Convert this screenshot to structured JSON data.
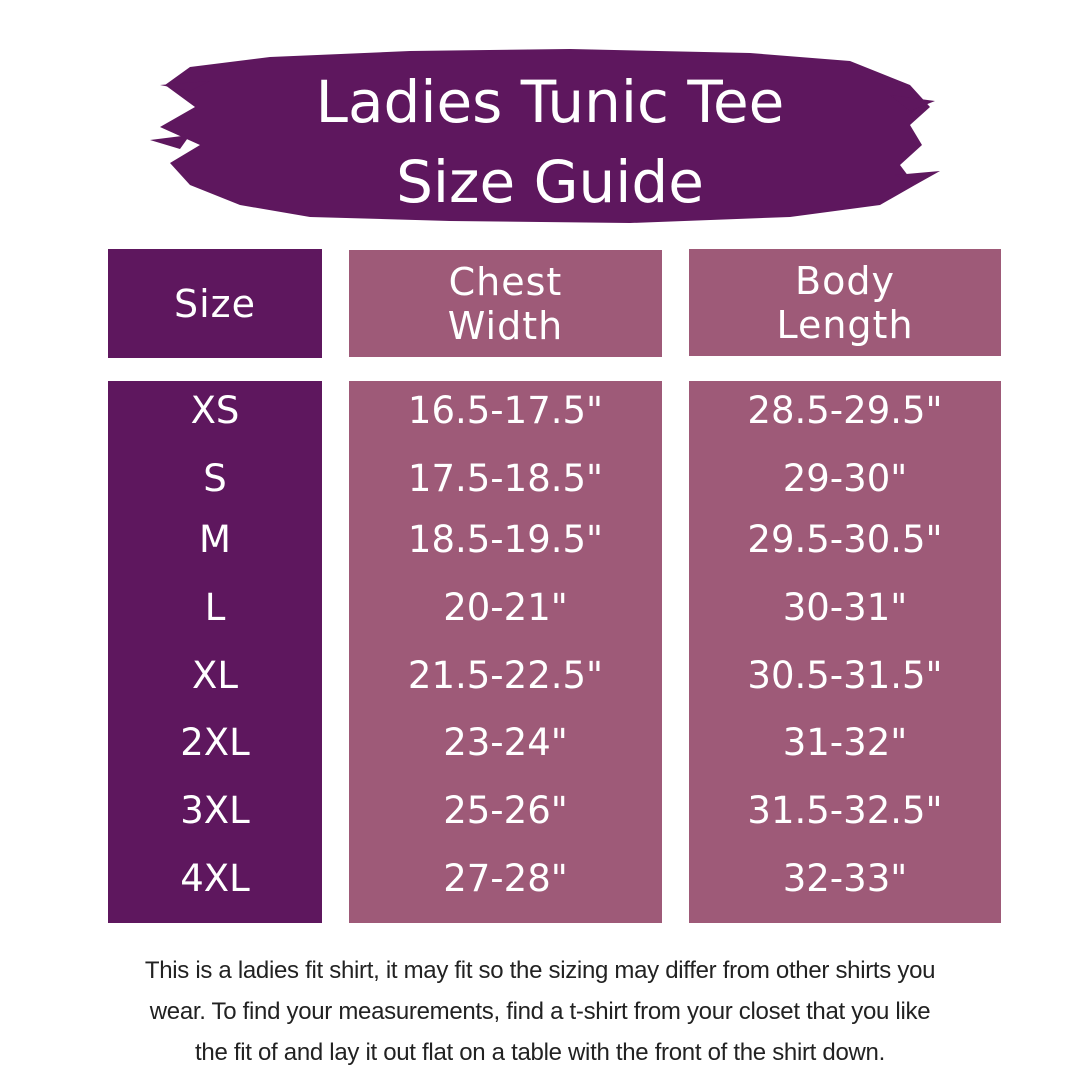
{
  "title": {
    "line1": "Ladies Tunic Tee",
    "line2": "Size Guide"
  },
  "colors": {
    "dark_purple": "#5e175e",
    "mauve": "#9e5a78",
    "text": "#ffffff"
  },
  "headers": {
    "size": "Size",
    "chest": "Chest Width",
    "body": "Body Length"
  },
  "rows": [
    {
      "size": "XS",
      "chest": "16.5-17.5\"",
      "body": "28.5-29.5\""
    },
    {
      "size": "S",
      "chest": "17.5-18.5\"",
      "body": "29-30\""
    },
    {
      "size": "M",
      "chest": "18.5-19.5\"",
      "body": "29.5-30.5\""
    },
    {
      "size": "L",
      "chest": "20-21\"",
      "body": "30-31\""
    },
    {
      "size": "XL",
      "chest": "21.5-22.5\"",
      "body": "30.5-31.5\""
    },
    {
      "size": "2XL",
      "chest": "23-24\"",
      "body": "31-32\""
    },
    {
      "size": "3XL",
      "chest": "25-26\"",
      "body": "31.5-32.5\""
    },
    {
      "size": "4XL",
      "chest": "27-28\"",
      "body": "32-33\""
    }
  ],
  "footer": {
    "line1": "This is a ladies fit shirt, it may fit so the sizing may differ from other shirts you",
    "line2": "wear. To find your measurements, find a t-shirt from your closet that you like",
    "line3": "the fit of and lay it out flat on a table with the front of the shirt down."
  }
}
